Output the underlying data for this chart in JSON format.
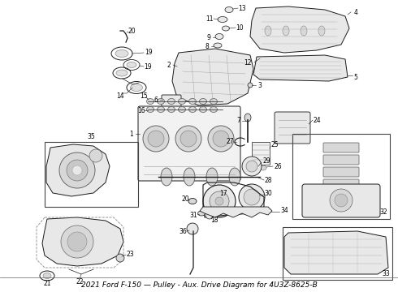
{
  "title": "2021 Ford F-150",
  "subtitle": "Pulley - Aux. Drive",
  "part_number": "4U3Z-8625-B",
  "bg_color": "#ffffff",
  "text_color": "#000000",
  "line_color": "#1a1a1a",
  "label_fontsize": 5.5,
  "caption_fontsize": 6.5,
  "figsize": [
    4.9,
    3.6
  ],
  "dpi": 100,
  "caption": "2021 Ford F-150 — Pulley - Aux. Drive Diagram for 4U3Z-8625-B"
}
